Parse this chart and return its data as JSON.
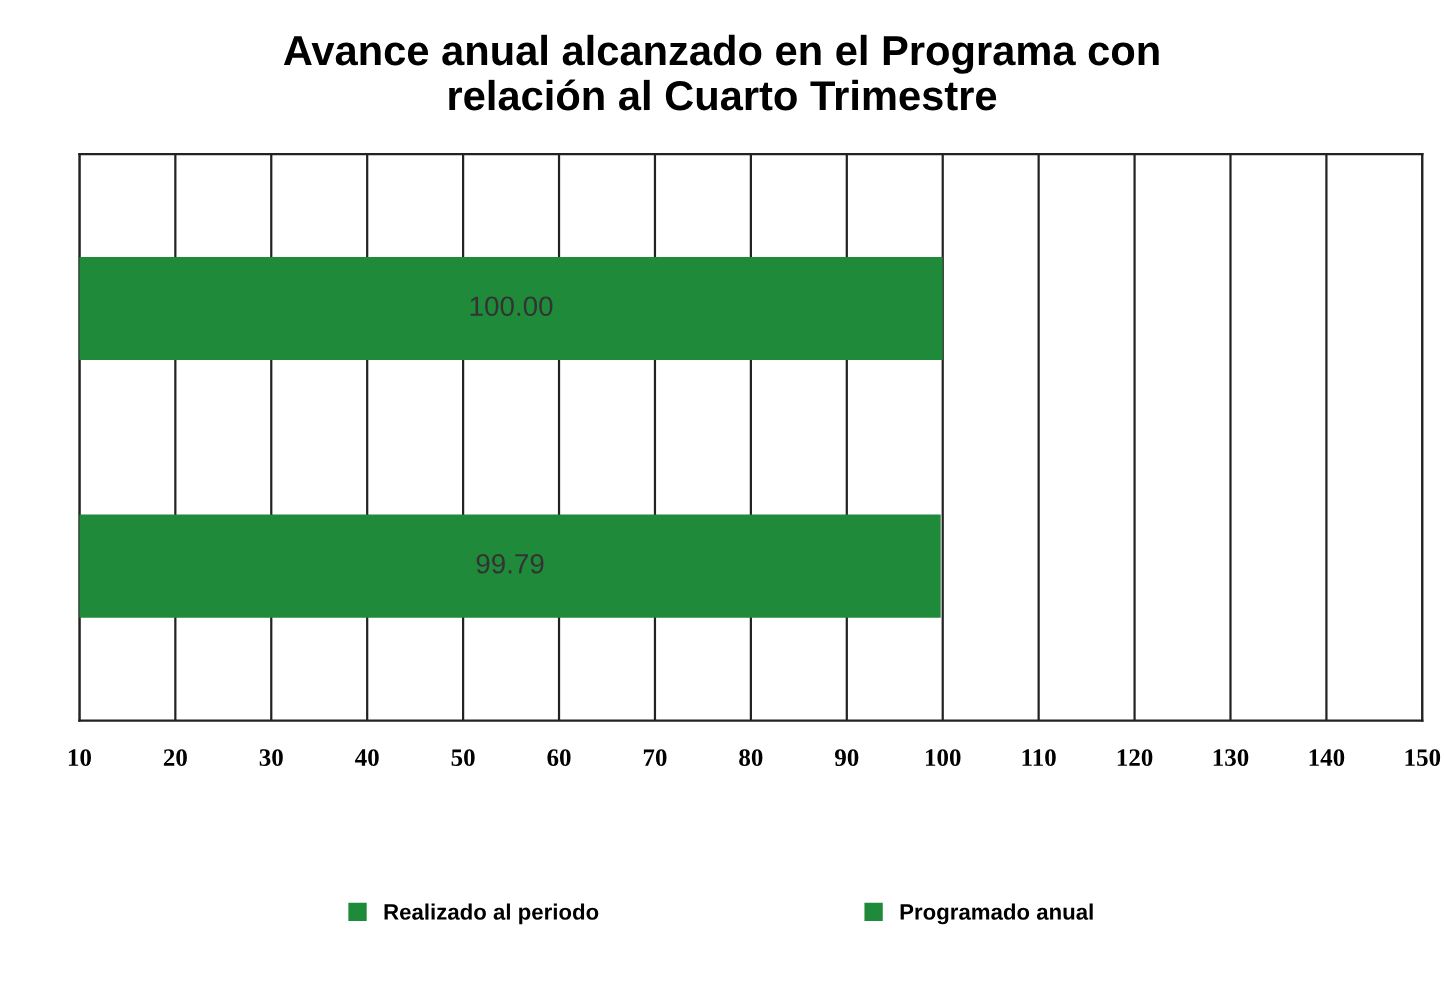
{
  "chart_data": {
    "type": "bar",
    "orientation": "horizontal",
    "title": "Avance anual alcanzado en el Programa con\nrelación al Cuarto Trimestre",
    "categories": [
      null,
      null
    ],
    "series": [
      {
        "name": "Realizado al periodo",
        "color": "#1f8a3a",
        "values": [
          null,
          99.79
        ],
        "value_labels": [
          null,
          "99.79"
        ]
      },
      {
        "name": "Programado anual",
        "color": "#1f8a3a",
        "values": [
          100.0,
          null
        ],
        "value_labels": [
          "100.00",
          null
        ]
      }
    ],
    "xlim": [
      10,
      150
    ],
    "xticks": [
      10,
      20,
      30,
      40,
      50,
      60,
      70,
      80,
      90,
      100,
      110,
      120,
      130,
      140,
      150
    ],
    "grid": "x",
    "legend": "bottom"
  }
}
